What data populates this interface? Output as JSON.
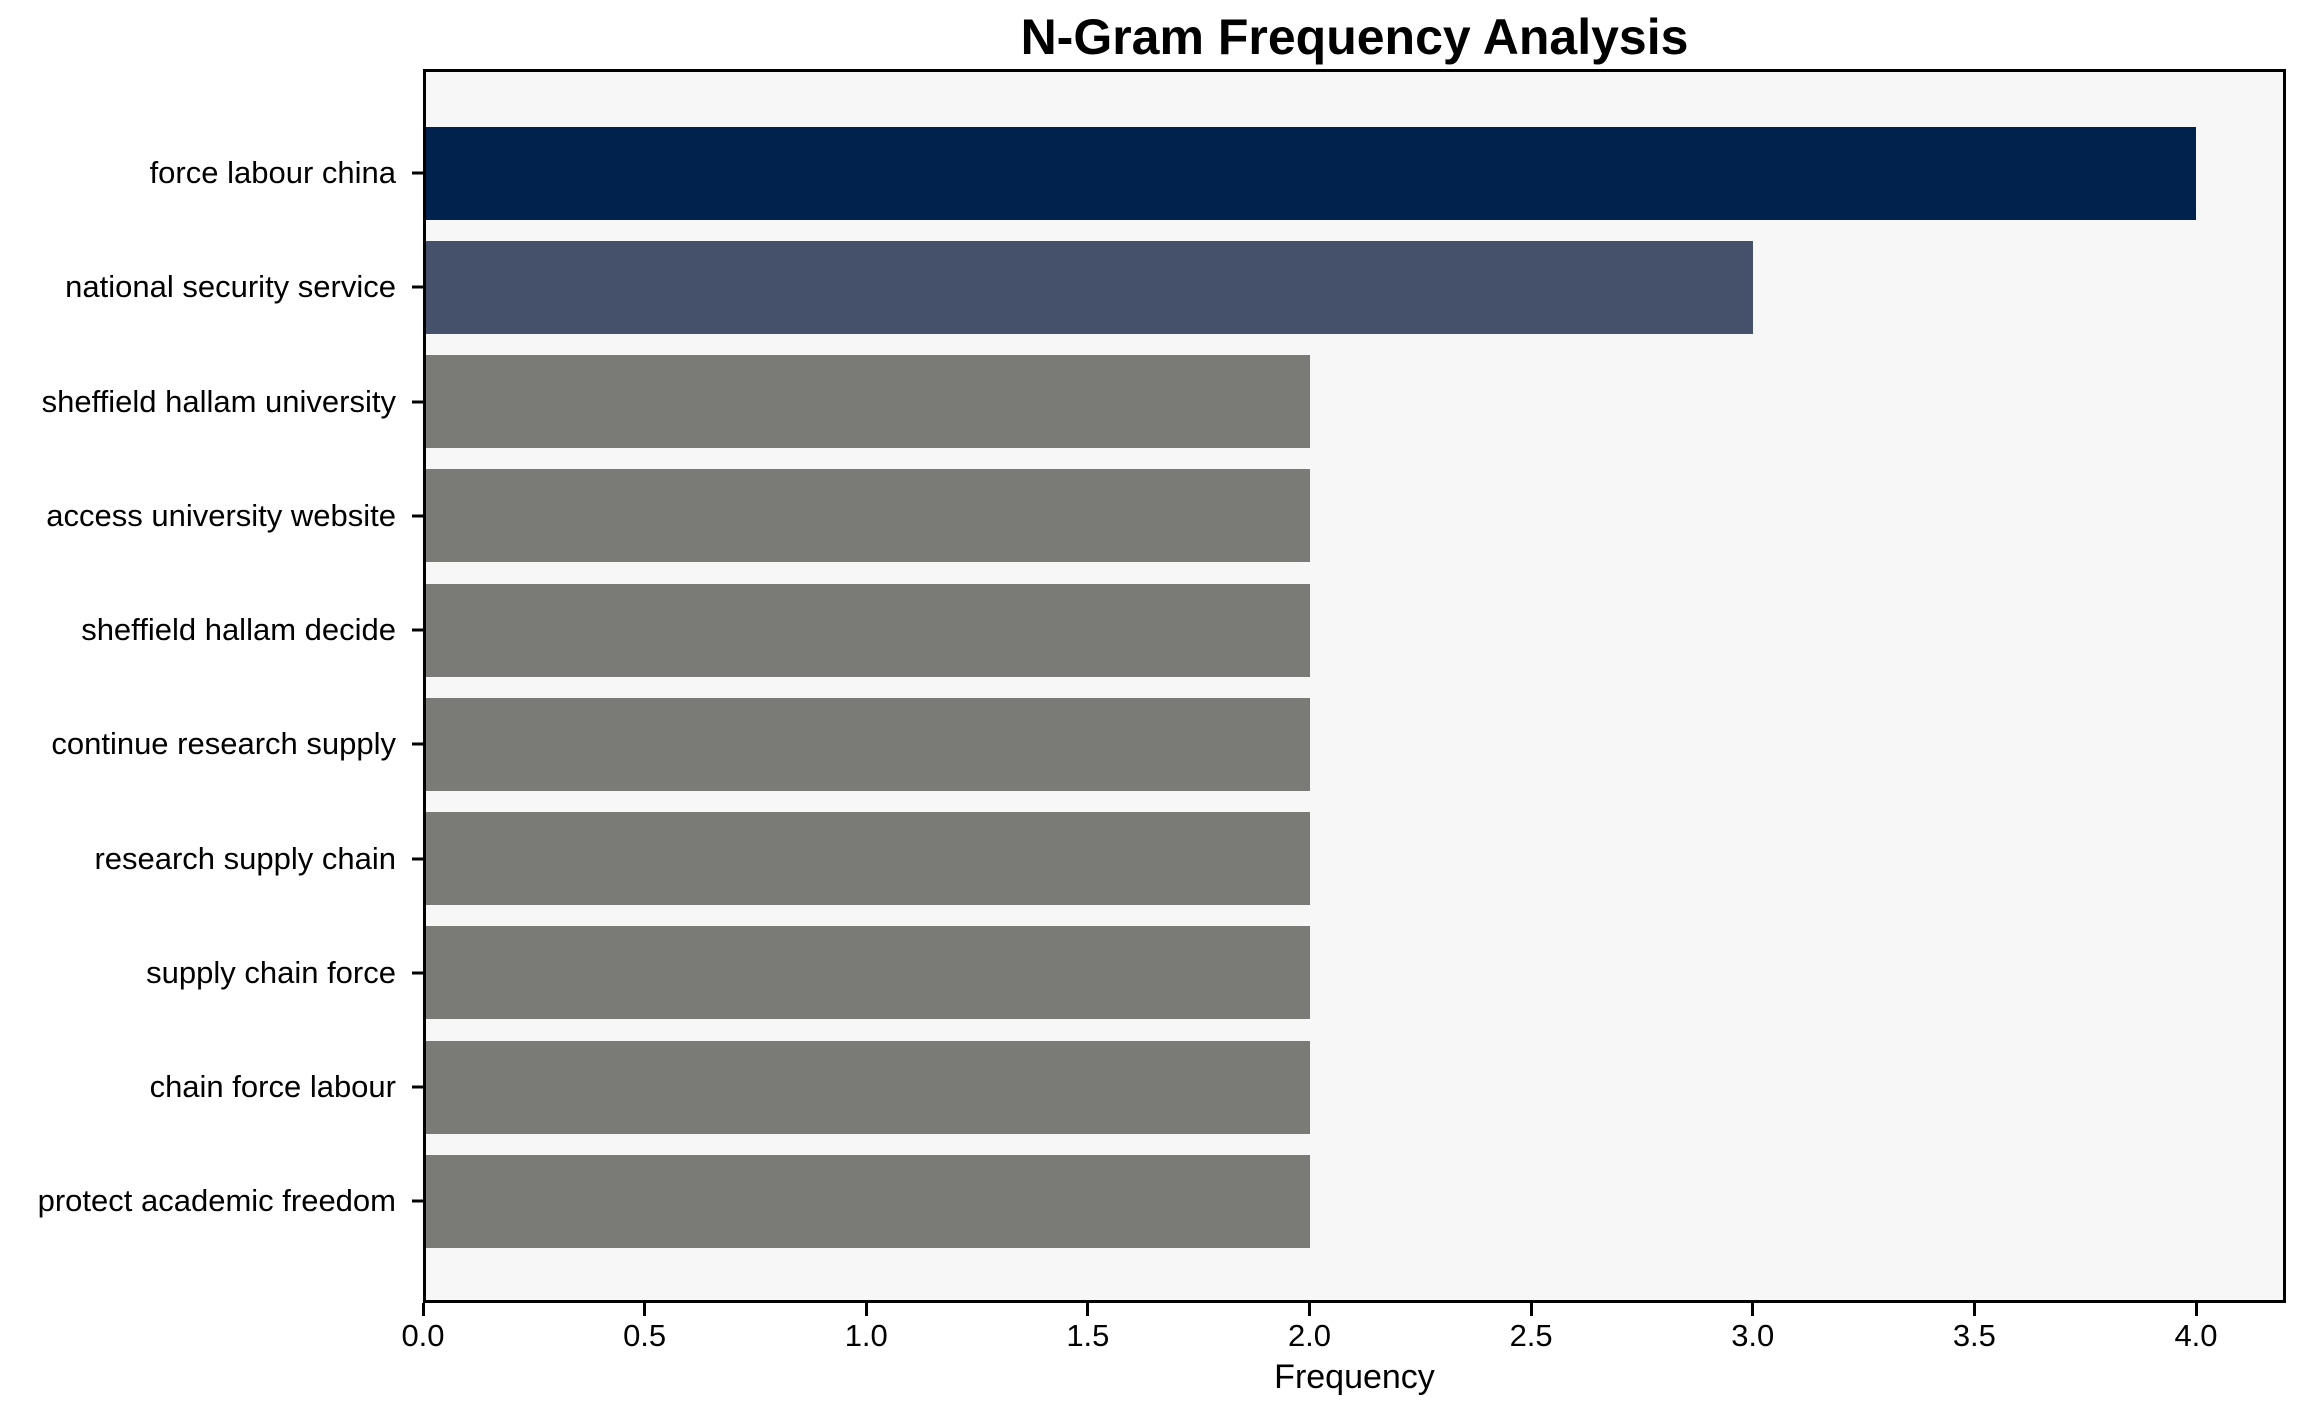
{
  "chart_data": {
    "type": "bar",
    "orientation": "horizontal",
    "title": "N-Gram Frequency Analysis",
    "xlabel": "Frequency",
    "ylabel": "",
    "categories": [
      "force labour china",
      "national security service",
      "sheffield hallam university",
      "access university website",
      "sheffield hallam decide",
      "continue research supply",
      "research supply chain",
      "supply chain force",
      "chain force labour",
      "protect academic freedom"
    ],
    "values": [
      4,
      3,
      2,
      2,
      2,
      2,
      2,
      2,
      2,
      2
    ],
    "bar_colors": [
      "#02224e",
      "#45506b",
      "#7a7a77",
      "#7a7a77",
      "#7a7a77",
      "#7a7a77",
      "#7a7a77",
      "#7a7a77",
      "#7a7a77",
      "#7a7a77"
    ],
    "xlim": [
      0.0,
      4.2
    ],
    "xticks": [
      0.0,
      0.5,
      1.0,
      1.5,
      2.0,
      2.5,
      3.0,
      3.5,
      4.0
    ],
    "xtick_labels": [
      "0.0",
      "0.5",
      "1.0",
      "1.5",
      "2.0",
      "2.5",
      "3.0",
      "3.5",
      "4.0"
    ],
    "grid": false,
    "legend": null,
    "plot_background": "#f7f7f7",
    "figure_background": "#ffffff",
    "spine_color": "#000000",
    "text_color": "#000000"
  }
}
